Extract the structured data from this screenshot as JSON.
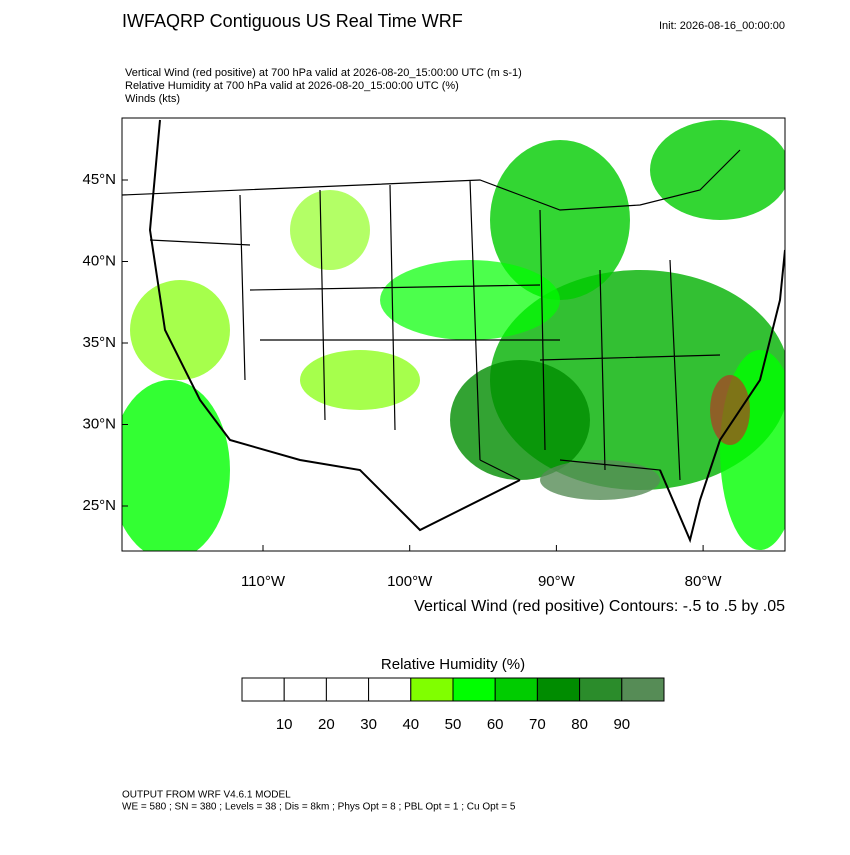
{
  "header": {
    "title": "IWFAQRP Contiguous US Real Time WRF",
    "init": "Init: 2026-08-16_00:00:00",
    "fields": [
      "Vertical Wind (red positive) at 700 hPa valid at 2026-08-20_15:00:00 UTC   (m s-1)",
      "Relative Humidity at 700 hPa valid at 2026-08-20_15:00:00 UTC   (%)",
      "Winds   (kts)"
    ]
  },
  "map": {
    "lat_labels": [
      "45°N",
      "40°N",
      "35°N",
      "30°N",
      "25°N"
    ],
    "lon_labels": [
      "110°W",
      "100°W",
      "90°W",
      "80°W"
    ],
    "contour_note": "Vertical Wind (red positive) Contours: -.5 to .5 by .05"
  },
  "colorbar": {
    "title": "Relative Humidity  (%)",
    "colors": [
      "#ffffff",
      "#ffffff",
      "#ffffff",
      "#ffffff",
      "#80ff00",
      "#00ff00",
      "#00cc00",
      "#008c00",
      "#2b8c2b",
      "#568c56"
    ],
    "labels": [
      "10",
      "20",
      "30",
      "40",
      "50",
      "60",
      "70",
      "80",
      "90"
    ]
  },
  "footer": {
    "lines": [
      "OUTPUT FROM WRF V4.6.1 MODEL",
      "WE = 580 ; SN = 380 ; Levels = 38 ; Dis = 8km ; Phys Opt = 8 ; PBL Opt = 1 ; Cu Opt = 5"
    ]
  }
}
